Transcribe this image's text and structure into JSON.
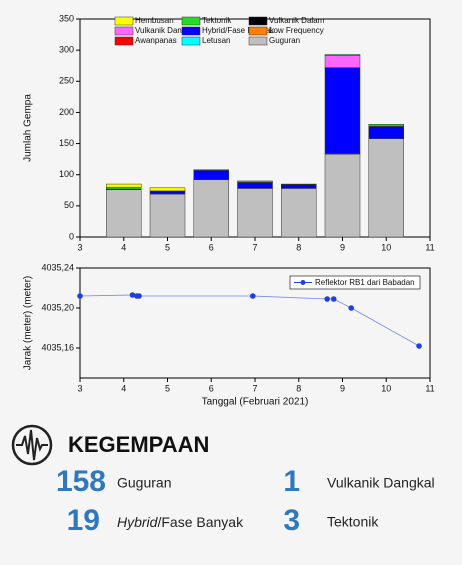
{
  "chart_data": [
    {
      "type": "bar",
      "stacked": true,
      "ylabel": "Jumlah Gempa",
      "x": [
        4,
        5,
        6,
        7,
        8,
        9,
        10
      ],
      "xlim": [
        3,
        11
      ],
      "xticks": [
        3,
        4,
        5,
        6,
        7,
        8,
        9,
        10,
        11
      ],
      "ylim": [
        0,
        350
      ],
      "yticks": [
        0,
        50,
        100,
        150,
        200,
        250,
        300,
        350
      ],
      "series": [
        {
          "name": "Hembusan",
          "color": "#ffff00",
          "values": [
            5,
            5,
            0,
            0,
            0,
            0,
            0
          ]
        },
        {
          "name": "Tektonik",
          "color": "#22dd22",
          "values": [
            3,
            0,
            1,
            2,
            0,
            2,
            3
          ]
        },
        {
          "name": "Vulkanik Dalam",
          "color": "#000000",
          "values": [
            1,
            1,
            0,
            1,
            1,
            0,
            0
          ]
        },
        {
          "name": "Vulkanik Dangkal",
          "color": "#ff66ff",
          "values": [
            0,
            0,
            0,
            0,
            0,
            19,
            1
          ]
        },
        {
          "name": "Hybrid/Fase Banyak",
          "color": "#0000ff",
          "values": [
            0,
            4,
            15,
            9,
            6,
            138,
            19
          ]
        },
        {
          "name": "Low Frequency",
          "color": "#ff8000",
          "values": [
            0,
            0,
            0,
            0,
            0,
            1,
            0
          ]
        },
        {
          "name": "Awanpanas",
          "color": "#ff0000",
          "values": [
            0,
            0,
            0,
            0,
            0,
            0,
            0
          ]
        },
        {
          "name": "Letusan",
          "color": "#00ffff",
          "values": [
            0,
            0,
            0,
            0,
            0,
            0,
            0
          ]
        },
        {
          "name": "Guguran",
          "color": "#bfbfbf",
          "values": [
            76,
            69,
            92,
            78,
            78,
            133,
            158
          ]
        }
      ]
    },
    {
      "type": "line",
      "xlabel": "Tanggal (Februari 2021)",
      "ylabel": "Jarak (meter) (meter)",
      "x": [
        3,
        4.2,
        4.3,
        4.35,
        6.95,
        8.65,
        8.8,
        9.2,
        10.75
      ],
      "xlim": [
        3,
        11
      ],
      "xticks": [
        3,
        4,
        5,
        6,
        7,
        8,
        9,
        10,
        11
      ],
      "ylim": [
        4035.13,
        4035.24
      ],
      "yticks": [
        {
          "value": 4035.16,
          "label": "4035,16"
        },
        {
          "value": 4035.2,
          "label": "4035,20"
        },
        {
          "value": 4035.24,
          "label": "4035,24"
        }
      ],
      "series": [
        {
          "name": "Reflektor RB1 dari Babadan",
          "color": "#1f3fdf",
          "values": [
            4035.212,
            4035.213,
            4035.212,
            4035.212,
            4035.212,
            4035.209,
            4035.209,
            4035.2,
            4035.162
          ]
        }
      ]
    }
  ],
  "summary": {
    "title": "KEGEMPAAN",
    "items": [
      {
        "count": "158",
        "label": "Guguran"
      },
      {
        "count": "1",
        "label": "Vulkanik Dangkal"
      },
      {
        "count": "19",
        "label_italic": "Hybrid",
        "label": "/Fase Banyak"
      },
      {
        "count": "3",
        "label": "Tektonik"
      }
    ]
  }
}
